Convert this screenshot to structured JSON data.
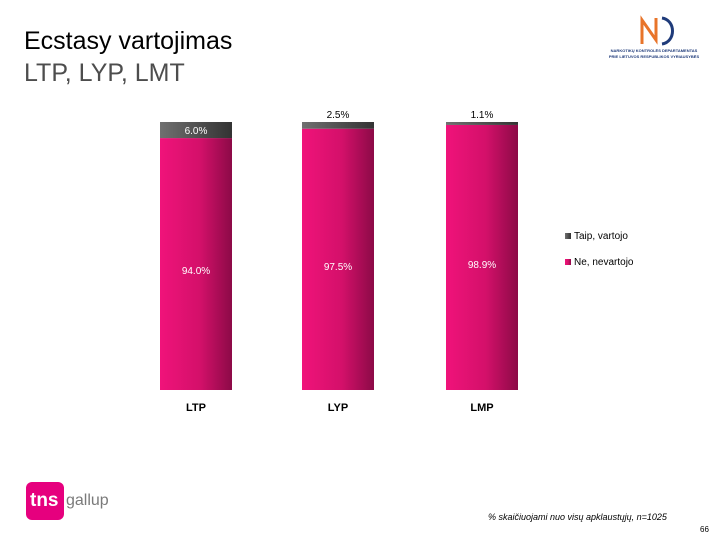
{
  "slide": {
    "title": "Ecstasy vartojimas",
    "subtitle": "LTP, LYP, LMT",
    "logo_org_line1": "NARKOTIKŲ KONTROLĖS DEPARTAMENTAS",
    "logo_org_line2": "PRIE LIETUVOS RESPUBLIKOS VYRIAUSYBĖS",
    "tns_logo_text": "tns",
    "gallup_logo_text": "gallup",
    "footnote": "% skaičiuojami nuo visų apklaustųjų, n=1025",
    "page_number": "66"
  },
  "colors": {
    "taip": "#555555",
    "ne": "#e0116f",
    "ne_dark": "#b00d57",
    "brand_pink": "#e6007e",
    "logo_orange": "#e8742a",
    "logo_blue": "#1f3b7a"
  },
  "chart_data": {
    "type": "bar",
    "stacked": true,
    "categories": [
      "LTP",
      "LYP",
      "LMP"
    ],
    "series": [
      {
        "name": "Ne, nevartojo",
        "values": [
          94.0,
          97.5,
          98.9
        ],
        "labels": [
          "94.0%",
          "97.5%",
          "98.9%"
        ],
        "color": "#e0116f"
      },
      {
        "name": "Taip, vartojo",
        "values": [
          6.0,
          2.5,
          1.1
        ],
        "labels": [
          "6.0%",
          "2.5%",
          "1.1%"
        ],
        "color": "#555555"
      }
    ],
    "ylim": [
      0,
      100
    ],
    "grid": false,
    "legend_position": "right",
    "legend": [
      "Taip, vartojo",
      "Ne, nevartojo"
    ]
  }
}
